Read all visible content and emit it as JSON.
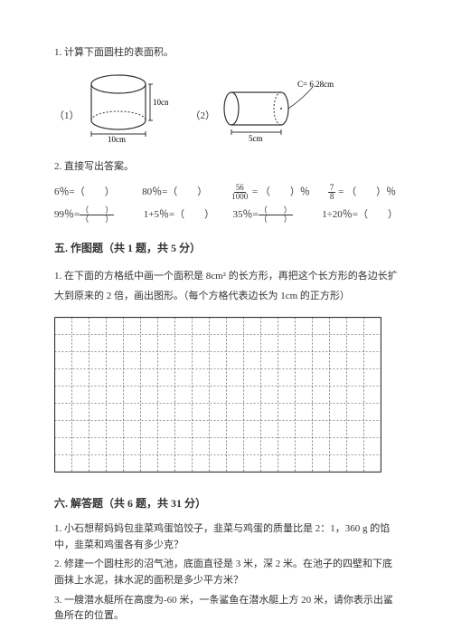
{
  "q1": {
    "text": "1. 计算下面圆柱的表面积。",
    "fig1": {
      "label": "（1）",
      "h_label": "10cm",
      "d_label": "10cm"
    },
    "fig2": {
      "label": "（2）",
      "c_label": "C= 6.28cm",
      "d_label": "5cm"
    }
  },
  "q2": {
    "text": "2. 直接写出答案。",
    "row1": {
      "a": "6％=（　　）",
      "b": "80％=（　　）",
      "c_num": "56",
      "c_den": "1000",
      "c_suffix": " = （　　）％",
      "d_num": "7",
      "d_den": "8",
      "d_suffix": " = （　　）％"
    },
    "row2": {
      "a_prefix": "99％=",
      "a_top": "（　　）",
      "a_bot": "（　　）",
      "b": "1+5％=（　　）",
      "c_prefix": "35％=",
      "c_top": "（　　）",
      "c_bot": "（　　）",
      "d": "1÷20％=（　　）"
    }
  },
  "s5": {
    "title": "五. 作图题（共 1 题，共 5 分）",
    "q": "1. 在下面的方格纸中画一个面积是 8cm² 的长方形，再把这个长方形的各边长扩大到原来的 2 倍，画出图形。（每个方格代表边长为 1cm 的正方形）",
    "grid": {
      "cols": 19,
      "rows": 9,
      "cell": 19
    }
  },
  "s6": {
    "title": "六. 解答题（共 6 题，共 31 分）",
    "q1": "1. 小石想帮妈妈包韭菜鸡蛋馅饺子，韭菜与鸡蛋的质量比是 2：1，360 g 的馅中，韭菜和鸡蛋各有多少克？",
    "q2": "2. 修建一个圆柱形的沼气池，底面直径是 3 米，深 2 米。在池子的四壁和下底面抹上水泥，抹水泥的面积是多少平方米？",
    "q3": "3. 一艘潜水艇所在高度为-60 米，一条鲨鱼在潜水艇上方 20 米，请你表示出鲨鱼所在的位置。"
  }
}
